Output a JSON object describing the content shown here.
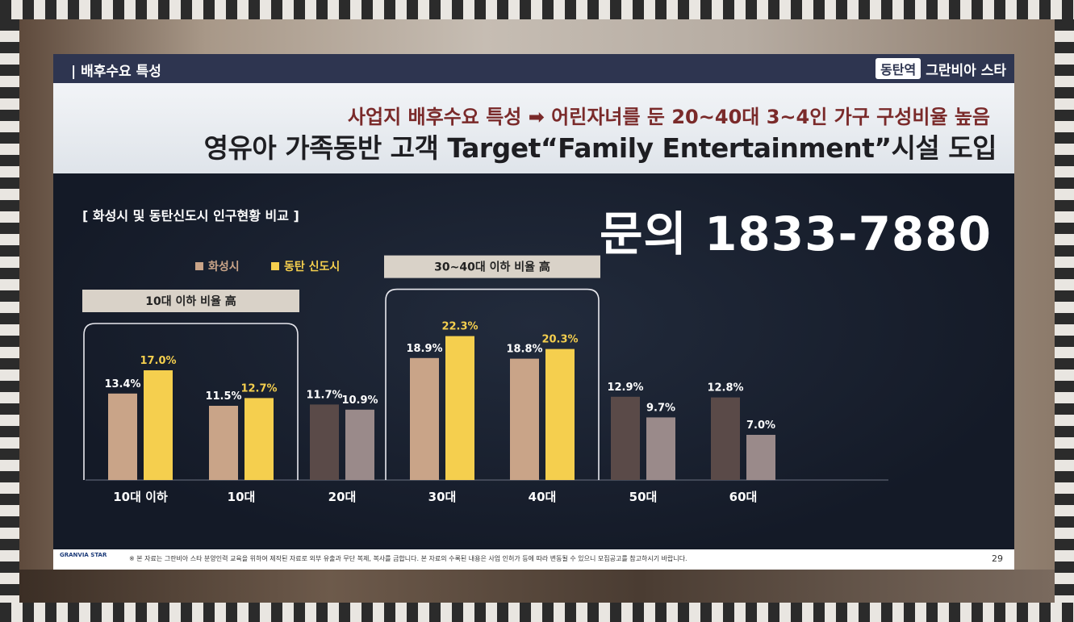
{
  "header": {
    "title": "| 배후수요 특성",
    "brand_box": "동탄역",
    "brand_name": "그란비아 스타"
  },
  "headline": {
    "line1": "사업지 배후수요 특성 ➡ 어린자녀를 둔 20~40대 3~4인 가구 구성비율 높음",
    "line2": "영유아 가족동반 고객 Target“Family Entertainment”시설 도입"
  },
  "section_title": "[ 화성시 및 동탄신도시 인구현황 비교 ]",
  "inquiry": "문의 1833-7880",
  "chart_data": {
    "type": "bar",
    "categories": [
      "10대 이하",
      "10대",
      "20대",
      "30대",
      "40대",
      "50대",
      "60대"
    ],
    "series": [
      {
        "name": "화성시",
        "values": [
          13.4,
          11.5,
          11.7,
          18.9,
          18.8,
          12.9,
          12.8
        ],
        "labels": [
          "13.4%",
          "11.5%",
          "11.7%",
          "18.9%",
          "18.8%",
          "12.9%",
          "12.8%"
        ]
      },
      {
        "name": "동탄 신도시",
        "values": [
          17.0,
          12.7,
          10.9,
          22.3,
          20.3,
          9.7,
          7.0
        ],
        "labels": [
          "17.0%",
          "12.7%",
          "10.9%",
          "22.3%",
          "20.3%",
          "9.7%",
          "7.0%"
        ]
      }
    ],
    "highlight_categories": [
      0,
      1,
      3,
      4
    ],
    "colors": {
      "series1_highlight": "#c9a488",
      "series2_highlight": "#f5cf4e",
      "series1_muted": "#5a4a48",
      "series2_muted": "#9a8a8a",
      "label_series1": "#ffffff",
      "label_series2": "#f5cf4e"
    },
    "annotations": [
      {
        "text": "10대 이하 비율 高",
        "categories": [
          0,
          1
        ]
      },
      {
        "text": "30~40대 이하 비율 高",
        "categories": [
          3,
          4
        ]
      }
    ],
    "ylim": [
      0,
      25
    ],
    "legend_position": "top-left",
    "grid": false
  },
  "footer": {
    "logo_line1": "GRANVIA STAR",
    "note": "※ 본 자료는 그란비아 스타 분양인력 교육을 위하여 제작된 자료로 외부 유출과 무단 복제, 복사를 금합니다. 본 자료의 수록된 내용은 사업 인허가 등에 따라 변동될 수 있으니 모집공고를 참고하시기 바랍니다.",
    "page": "29"
  }
}
